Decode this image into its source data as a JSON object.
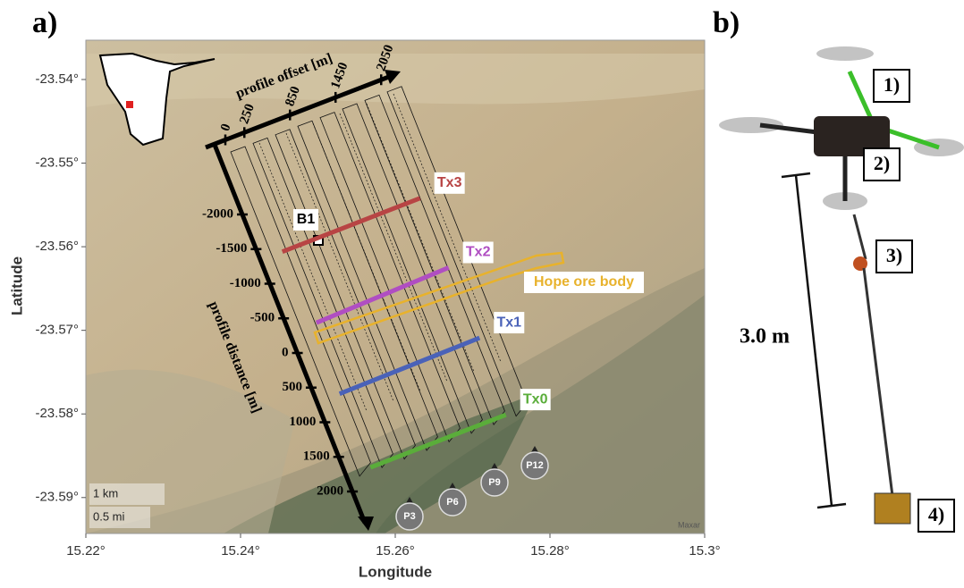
{
  "chart_data": {
    "type": "map",
    "panel_label": "a)",
    "xlabel": "Longitude",
    "ylabel": "Latitude",
    "xlim": [
      15.22,
      15.3
    ],
    "ylim": [
      -23.5943,
      -23.5353
    ],
    "xticks": [
      {
        "value": 15.22,
        "label": "15.22°"
      },
      {
        "value": 15.24,
        "label": "15.24°"
      },
      {
        "value": 15.26,
        "label": "15.26°"
      },
      {
        "value": 15.28,
        "label": "15.28°"
      },
      {
        "value": 15.3,
        "label": "15.3°"
      }
    ],
    "yticks": [
      {
        "value": -23.54,
        "label": "-23.54°"
      },
      {
        "value": -23.55,
        "label": "-23.55°"
      },
      {
        "value": -23.56,
        "label": "-23.56°"
      },
      {
        "value": -23.57,
        "label": "-23.57°"
      },
      {
        "value": -23.58,
        "label": "-23.58°"
      },
      {
        "value": -23.59,
        "label": "-23.59°"
      }
    ],
    "series": [
      {
        "name": "Tx3",
        "color": "#b84444",
        "x": [
          15.2454,
          15.2632
        ],
        "y": [
          -23.5606,
          -23.5542
        ]
      },
      {
        "name": "Tx2",
        "color": "#b04ec2",
        "x": [
          15.2498,
          15.2669
        ],
        "y": [
          -23.5691,
          -23.5625
        ]
      },
      {
        "name": "Tx1",
        "color": "#4a62b8",
        "x": [
          15.2528,
          15.2709
        ],
        "y": [
          -23.5776,
          -23.5709
        ]
      },
      {
        "name": "Tx0",
        "color": "#5aad3a",
        "x": [
          15.2568,
          15.2743
        ],
        "y": [
          -23.5864,
          -23.5801
        ]
      }
    ],
    "ore_body": "Hope ore body",
    "borehole": "B1",
    "profiles": [
      "P3",
      "P6",
      "P9",
      "P12"
    ],
    "profile_offset": {
      "label": "profile offset [m]",
      "ticks": [
        0,
        250,
        850,
        1450,
        2050
      ]
    },
    "profile_distance": {
      "label": "profile distance [m]",
      "ticks": [
        -2000,
        -1500,
        -1000,
        -500,
        0,
        500,
        1000,
        1500,
        2000
      ]
    },
    "scale": [
      "1 km",
      "0.5 mi"
    ],
    "credit": "Maxar"
  },
  "photo": {
    "panel_label": "b)",
    "labels": [
      "1)",
      "2)",
      "3)",
      "4)"
    ],
    "length": "3.0 m"
  }
}
